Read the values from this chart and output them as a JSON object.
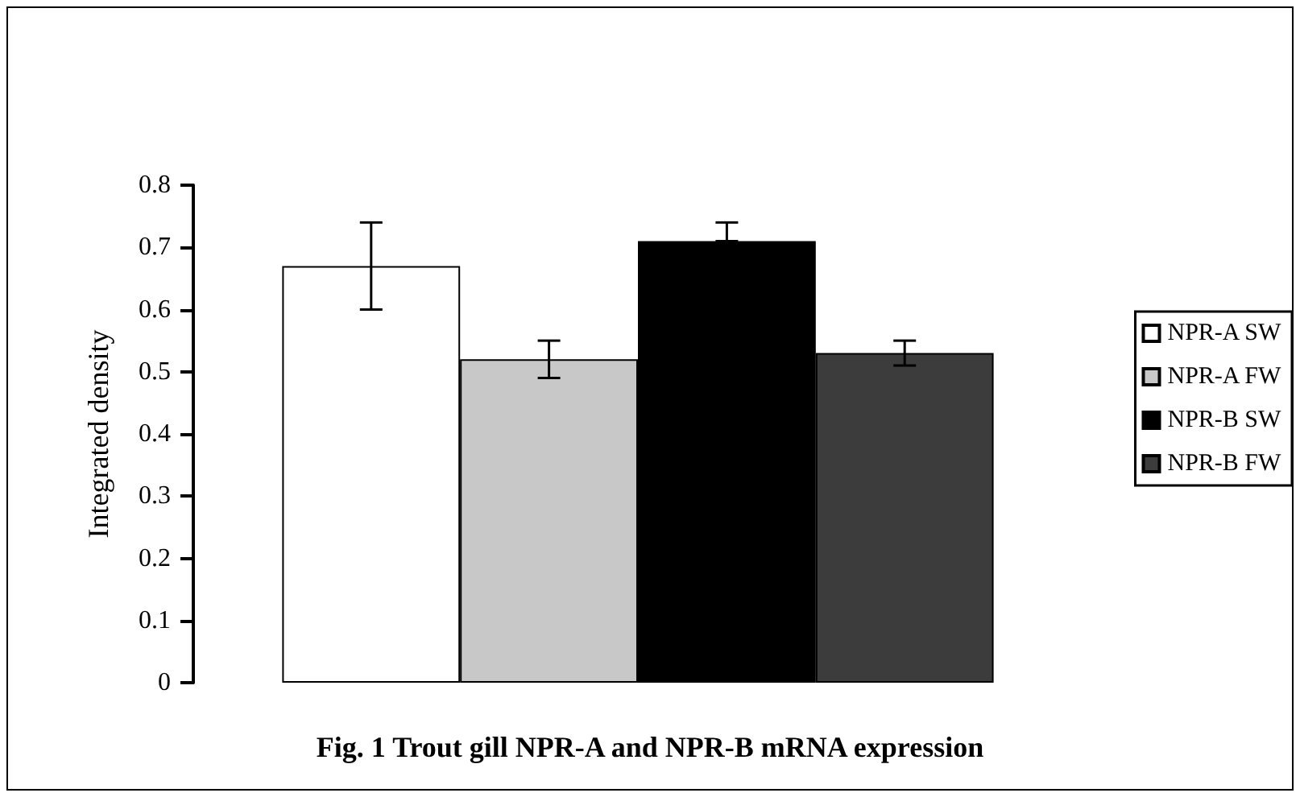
{
  "chart_data": {
    "type": "bar",
    "title": "Fig. 1 Trout gill NPR-A and NPR-B mRNA expression",
    "ylabel": "Integrated density",
    "categories": [
      null
    ],
    "series": [
      {
        "name": "NPR-A SW",
        "color": "#ffffff",
        "values": [
          0.67
        ],
        "errors": [
          [
            0.6,
            0.74
          ]
        ]
      },
      {
        "name": "NPR-A FW",
        "color": "#c8c8c8",
        "values": [
          0.52
        ],
        "errors": [
          [
            0.49,
            0.55
          ]
        ]
      },
      {
        "name": "NPR-B SW",
        "color": "#000000",
        "values": [
          0.71
        ],
        "errors": [
          [
            0.71,
            0.74
          ]
        ]
      },
      {
        "name": "NPR-B FW",
        "color": "#3c3c3c",
        "values": [
          0.53
        ],
        "errors": [
          [
            0.51,
            0.55
          ]
        ]
      }
    ],
    "ylim": [
      0,
      0.8
    ],
    "yticks": [
      0,
      0.1,
      0.2,
      0.3,
      0.4,
      0.5,
      0.6,
      0.7,
      0.8
    ],
    "legend": "right"
  }
}
